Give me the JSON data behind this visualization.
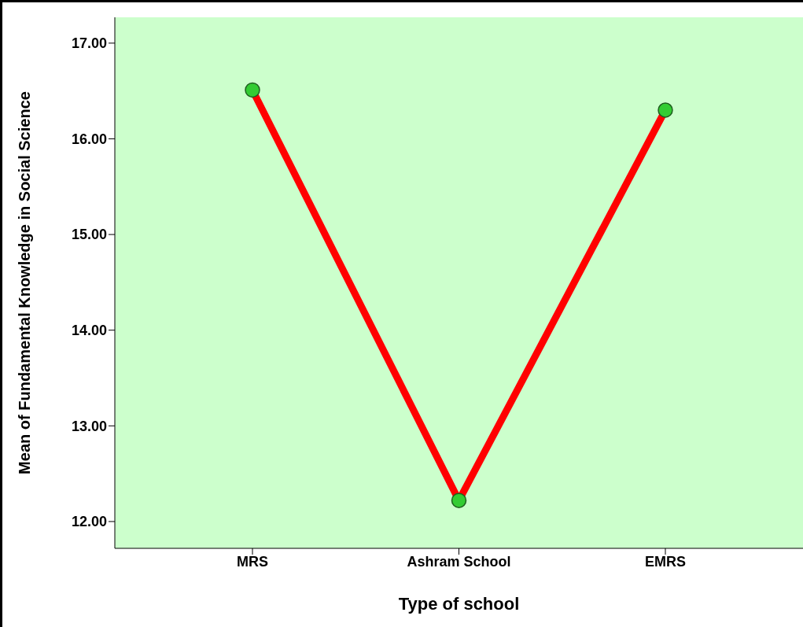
{
  "chart_data": {
    "type": "line",
    "xlabel": "Type of school",
    "ylabel": "Mean of Fundamental Knowledge in Social Science",
    "categories": [
      "MRS",
      "Ashram School",
      "EMRS"
    ],
    "series": [
      {
        "color": "#ff0000",
        "values": [
          16.51,
          12.22,
          16.3
        ]
      }
    ],
    "ylim": [
      11.72,
      17.27
    ],
    "yticks": [
      {
        "value": 12,
        "label": "12.00"
      },
      {
        "value": 13,
        "label": "13.00"
      },
      {
        "value": 14,
        "label": "14.00"
      },
      {
        "value": 15,
        "label": "15.00"
      },
      {
        "value": 16,
        "label": "16.00"
      },
      {
        "value": 17,
        "label": "17.00"
      }
    ],
    "grid": false,
    "legend": false,
    "marker": "circle",
    "line_style": "solid"
  }
}
